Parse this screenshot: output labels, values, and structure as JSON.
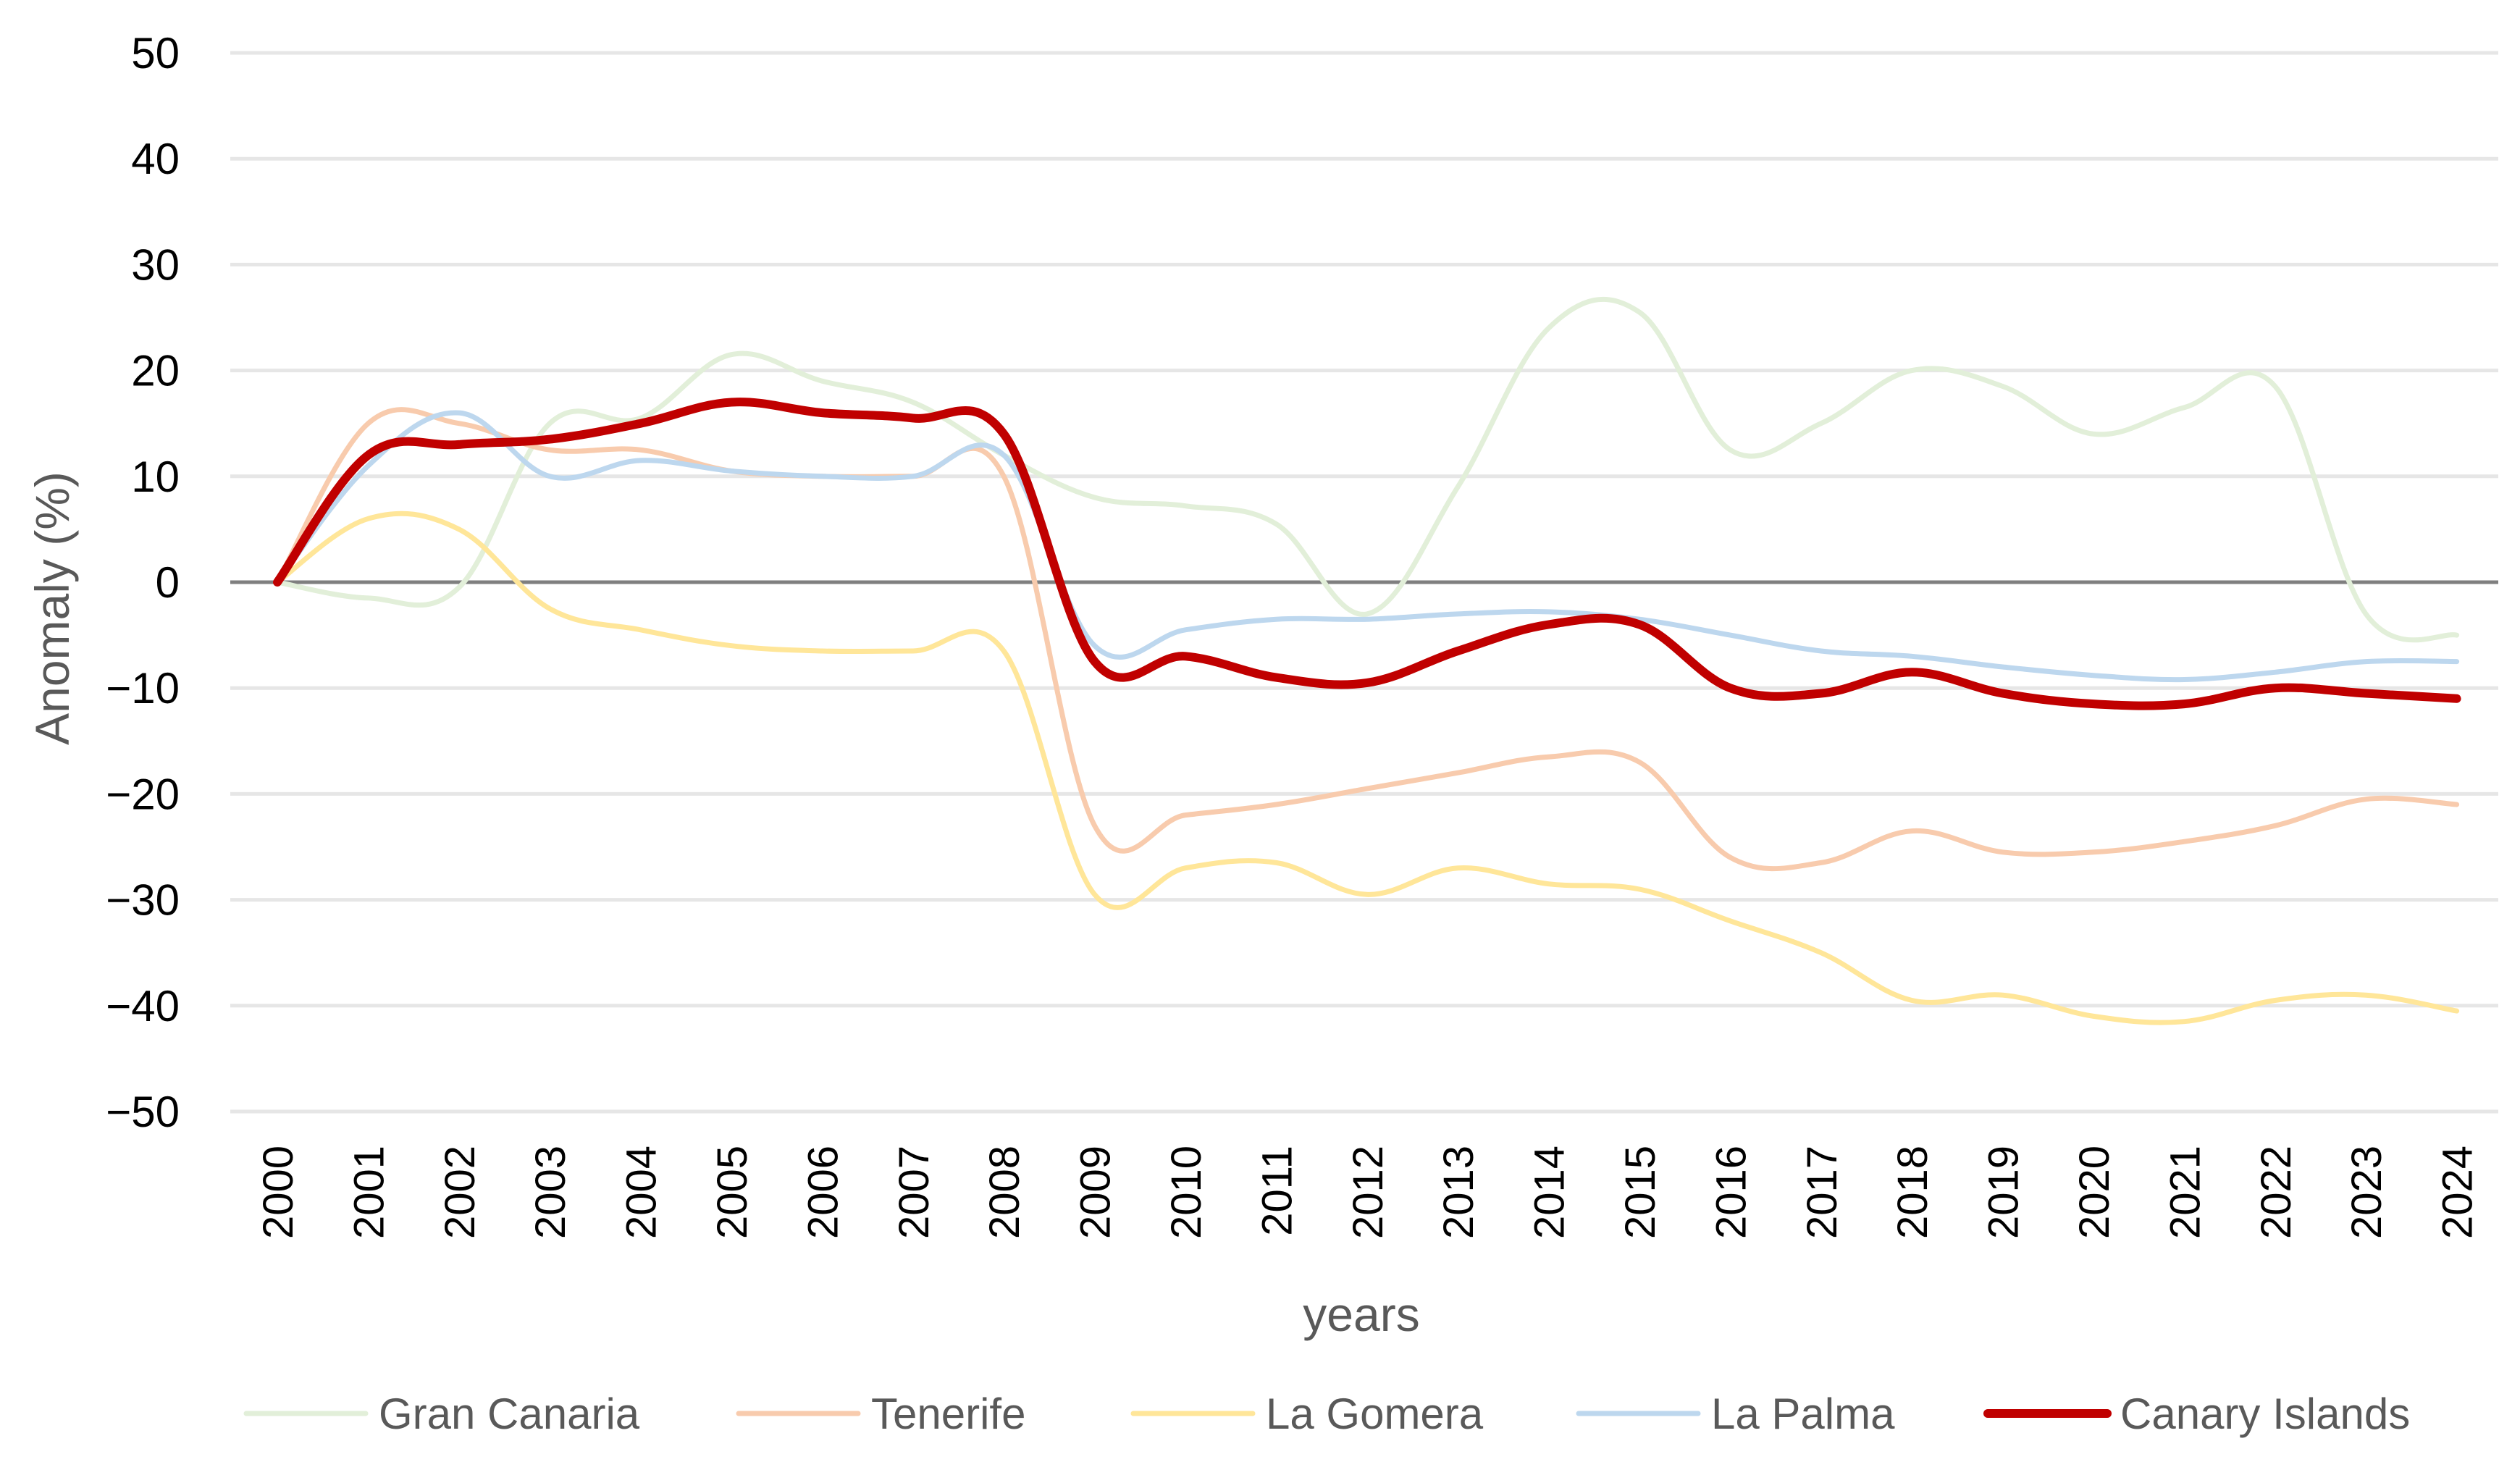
{
  "chart_data": {
    "type": "line",
    "title": "",
    "xlabel": "years",
    "ylabel": "Anomaly (%)",
    "ylim": [
      -50,
      50
    ],
    "yticks": [
      50,
      40,
      30,
      20,
      10,
      0,
      -10,
      -20,
      -30,
      -40,
      -50
    ],
    "ytick_labels": [
      "50",
      "40",
      "30",
      "20",
      "10",
      "0",
      "−10",
      "−20",
      "−30",
      "−40",
      "−50"
    ],
    "categories": [
      "2000",
      "2001",
      "2002",
      "2003",
      "2004",
      "2005",
      "2006",
      "2007",
      "2008",
      "2009",
      "2010",
      "2011",
      "2012",
      "2013",
      "2014",
      "2015",
      "2016",
      "2017",
      "2018",
      "2019",
      "2020",
      "2021",
      "2022",
      "2023",
      "2024"
    ],
    "grid": true,
    "legend_position": "bottom",
    "series": [
      {
        "name": "Gran Canaria",
        "color": "#e2efd9",
        "values": [
          0,
          -1.5,
          -0.5,
          15,
          15.5,
          21.5,
          19,
          17,
          12,
          8,
          7.2,
          5.5,
          -3,
          9,
          24,
          25.5,
          12.5,
          15,
          20,
          18.5,
          14,
          16.5,
          18.5,
          -3,
          -5
        ]
      },
      {
        "name": "Tenerife",
        "color": "#f8cbad",
        "values": [
          0,
          15,
          15,
          12.5,
          12.5,
          10.5,
          10,
          10,
          10,
          -23,
          -22,
          -21,
          -19.5,
          -18,
          -16.5,
          -17,
          -26,
          -26.5,
          -23.5,
          -25.5,
          -25.5,
          -24.5,
          -23,
          -20.5,
          -21
        ]
      },
      {
        "name": "La Gomera",
        "color": "#ffe699",
        "values": [
          0,
          6,
          5,
          -2.5,
          -4.5,
          -6,
          -6.5,
          -6.5,
          -6.5,
          -29.5,
          -27,
          -26.5,
          -29.5,
          -27,
          -28.5,
          -29,
          -32,
          -35,
          -39.5,
          -39,
          -41,
          -41.5,
          -39.5,
          -39,
          -40.5
        ]
      },
      {
        "name": "La Palma",
        "color": "#bdd7ee",
        "values": [
          0,
          11,
          16,
          10,
          11.5,
          10.5,
          10,
          10,
          12,
          -6,
          -4.5,
          -3.5,
          -3.5,
          -3,
          -2.8,
          -3.5,
          -5,
          -6.5,
          -7,
          -8,
          -8.8,
          -9.2,
          -8.5,
          -7.5,
          -7.5
        ]
      },
      {
        "name": "Canary Islands",
        "color": "#c00000",
        "values": [
          0,
          12,
          13,
          13.5,
          15,
          17,
          16,
          15.5,
          14,
          -7.5,
          -7,
          -9,
          -9.5,
          -6.5,
          -4,
          -4,
          -10,
          -10.5,
          -8.5,
          -10.5,
          -11.5,
          -11.5,
          -10,
          -10.5,
          -11
        ]
      }
    ]
  }
}
